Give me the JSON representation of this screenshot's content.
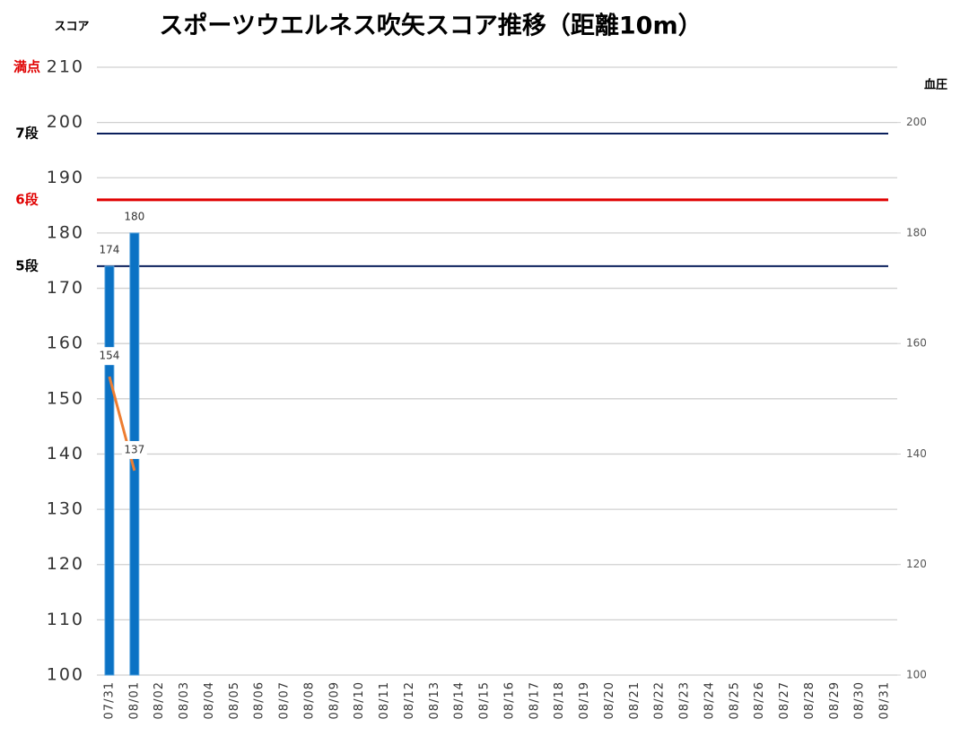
{
  "chart_data": {
    "type": "combo",
    "title": "スポーツウエルネス吹矢スコア推移（距離10m）",
    "y_label": "スコア",
    "y2_label": "血圧",
    "categories": [
      "07/31",
      "08/01",
      "08/02",
      "08/03",
      "08/04",
      "08/05",
      "08/06",
      "08/07",
      "08/08",
      "08/09",
      "08/10",
      "08/11",
      "08/12",
      "08/13",
      "08/14",
      "08/15",
      "08/16",
      "08/17",
      "08/18",
      "08/19",
      "08/20",
      "08/21",
      "08/22",
      "08/23",
      "08/24",
      "08/25",
      "08/26",
      "08/27",
      "08/28",
      "08/29",
      "08/30",
      "08/31"
    ],
    "series": [
      {
        "type": "bar",
        "color": "#0b72c4",
        "values": [
          174,
          180,
          null,
          null,
          null,
          null,
          null,
          null,
          null,
          null,
          null,
          null,
          null,
          null,
          null,
          null,
          null,
          null,
          null,
          null,
          null,
          null,
          null,
          null,
          null,
          null,
          null,
          null,
          null,
          null,
          null,
          null
        ]
      },
      {
        "type": "line",
        "axis": "y2",
        "color": "#ed7d31",
        "values": [
          154,
          137,
          null,
          null,
          null,
          null,
          null,
          null,
          null,
          null,
          null,
          null,
          null,
          null,
          null,
          null,
          null,
          null,
          null,
          null,
          null,
          null,
          null,
          null,
          null,
          null,
          null,
          null,
          null,
          null,
          null,
          null
        ]
      }
    ],
    "ylim": [
      100,
      210
    ],
    "yticks": [
      100,
      110,
      120,
      130,
      140,
      150,
      160,
      170,
      180,
      190,
      200,
      210
    ],
    "y2lim": [
      100,
      210
    ],
    "y2ticks": [
      100,
      120,
      140,
      160,
      180,
      200
    ],
    "grid": true,
    "reference_lines": [
      {
        "label": "満点",
        "value": 210,
        "label_color": "#e00000"
      },
      {
        "label": "7段",
        "value": 198,
        "label_color": "#000000",
        "line_color": "#0a1f5c"
      },
      {
        "label": "6段",
        "value": 186,
        "label_color": "#e00000",
        "line_color": "#e00000"
      },
      {
        "label": "5段",
        "value": 174,
        "label_color": "#000000",
        "line_color": "#0a1f5c"
      }
    ]
  }
}
